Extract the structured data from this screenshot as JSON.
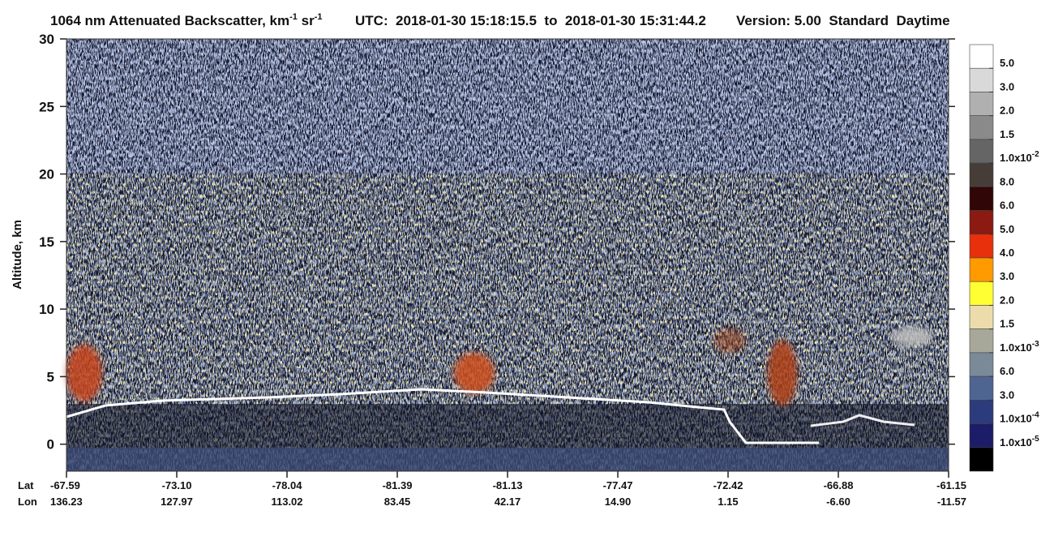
{
  "chart_data": {
    "type": "heatmap",
    "title_parts": [
      "1064 nm Attenuated Backscatter, km",
      "-1",
      " sr",
      "-1"
    ],
    "utc": "UTC:  2018-01-30 15:18:15.5  to  2018-01-30 15:31:44.2",
    "version": "Version: 5.00  Standard  Daytime",
    "ylabel": "Altitude, km",
    "ylim": [
      -2,
      30
    ],
    "yticks": [
      0,
      5,
      10,
      15,
      20,
      25,
      30
    ],
    "lat_label": "Lat",
    "lon_label": "Lon",
    "lat": [
      "-67.59",
      "-73.10",
      "-78.04",
      "-81.39",
      "-81.13",
      "-77.47",
      "-72.42",
      "-66.88",
      "-61.15"
    ],
    "lon": [
      "136.23",
      "127.97",
      "113.02",
      "83.45",
      "42.17",
      "14.90",
      "1.15",
      "-6.60",
      "-11.57"
    ],
    "colorbar": {
      "colors": [
        "#ffffff",
        "#d9d9d9",
        "#b0b0b0",
        "#8a8a8a",
        "#656565",
        "#463c38",
        "#300606",
        "#8a1a12",
        "#e8300c",
        "#ff9a00",
        "#ffff33",
        "#ecdcac",
        "#a8a89a",
        "#7a8a98",
        "#4e6592",
        "#2b3b7c",
        "#1c1c68",
        "#000000"
      ],
      "labels": [
        "5.0",
        "3.0",
        "2.0",
        "1.5",
        {
          "base": "1.0x10",
          "exp": "-2"
        },
        "8.0",
        "6.0",
        "5.0",
        "4.0",
        "3.0",
        "2.0",
        "1.5",
        {
          "base": "1.0x10",
          "exp": "-3"
        },
        "6.0",
        "3.0",
        {
          "base": "1.0x10",
          "exp": "-4"
        },
        {
          "base": "1.0x10",
          "exp": "-5"
        }
      ]
    }
  }
}
